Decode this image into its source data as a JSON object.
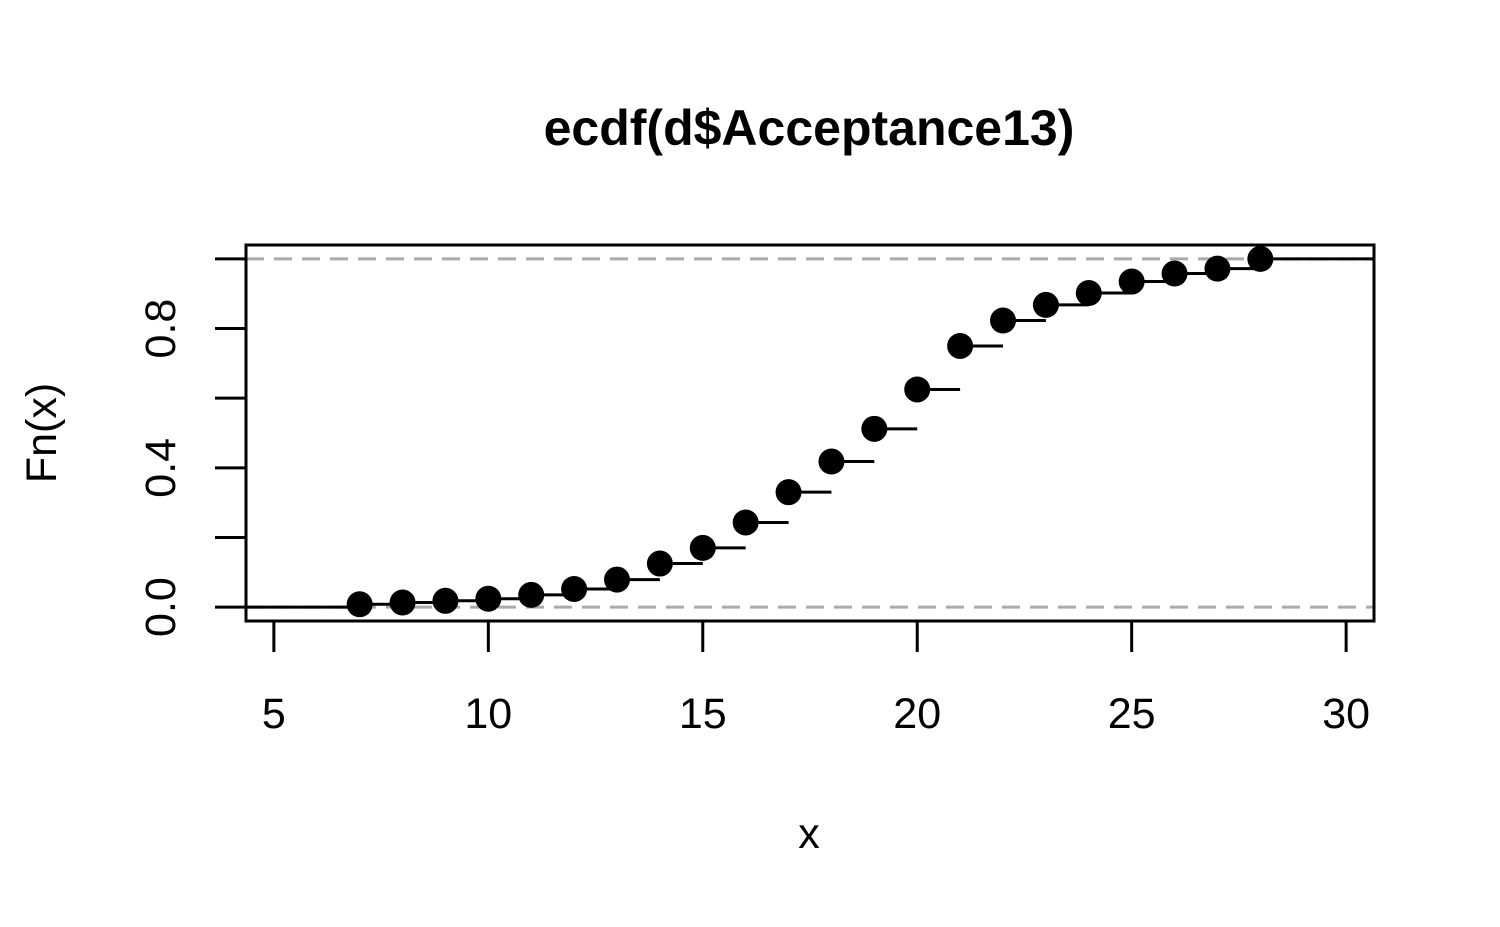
{
  "chart_data": {
    "type": "line",
    "subtype": "step-ecdf",
    "title": "ecdf(d$Acceptance13)",
    "xlabel": "x",
    "ylabel": "Fn(x)",
    "xlim": [
      4.35,
      30.65
    ],
    "ylim": [
      -0.04,
      1.04
    ],
    "x_ticks": [
      {
        "value": 5,
        "label": "5"
      },
      {
        "value": 10,
        "label": "10"
      },
      {
        "value": 15,
        "label": "15"
      },
      {
        "value": 20,
        "label": "20"
      },
      {
        "value": 25,
        "label": "25"
      },
      {
        "value": 30,
        "label": "30"
      }
    ],
    "y_ticks": [
      {
        "value": 0.0,
        "label": "0.0"
      },
      {
        "value": 0.2,
        "label": ""
      },
      {
        "value": 0.4,
        "label": "0.4"
      },
      {
        "value": 0.6,
        "label": ""
      },
      {
        "value": 0.8,
        "label": "0.8"
      },
      {
        "value": 1.0,
        "label": ""
      }
    ],
    "reference_lines": [
      {
        "y": 0,
        "style": "dashed",
        "color": "#aaaaaa"
      },
      {
        "y": 1,
        "style": "dashed",
        "color": "#aaaaaa"
      }
    ],
    "points": [
      {
        "x": 7,
        "y": 0.008
      },
      {
        "x": 8,
        "y": 0.013
      },
      {
        "x": 9,
        "y": 0.018
      },
      {
        "x": 10,
        "y": 0.024
      },
      {
        "x": 11,
        "y": 0.035
      },
      {
        "x": 12,
        "y": 0.052
      },
      {
        "x": 13,
        "y": 0.079
      },
      {
        "x": 14,
        "y": 0.125
      },
      {
        "x": 15,
        "y": 0.17
      },
      {
        "x": 16,
        "y": 0.243
      },
      {
        "x": 17,
        "y": 0.33
      },
      {
        "x": 18,
        "y": 0.418
      },
      {
        "x": 19,
        "y": 0.512
      },
      {
        "x": 20,
        "y": 0.625
      },
      {
        "x": 21,
        "y": 0.75
      },
      {
        "x": 22,
        "y": 0.823
      },
      {
        "x": 23,
        "y": 0.868
      },
      {
        "x": 24,
        "y": 0.902
      },
      {
        "x": 25,
        "y": 0.935
      },
      {
        "x": 26,
        "y": 0.958
      },
      {
        "x": 27,
        "y": 0.972
      },
      {
        "x": 28,
        "y": 1.0
      }
    ],
    "colors": {
      "series": "#000000",
      "reference": "#aaaaaa",
      "frame": "#000000"
    }
  }
}
